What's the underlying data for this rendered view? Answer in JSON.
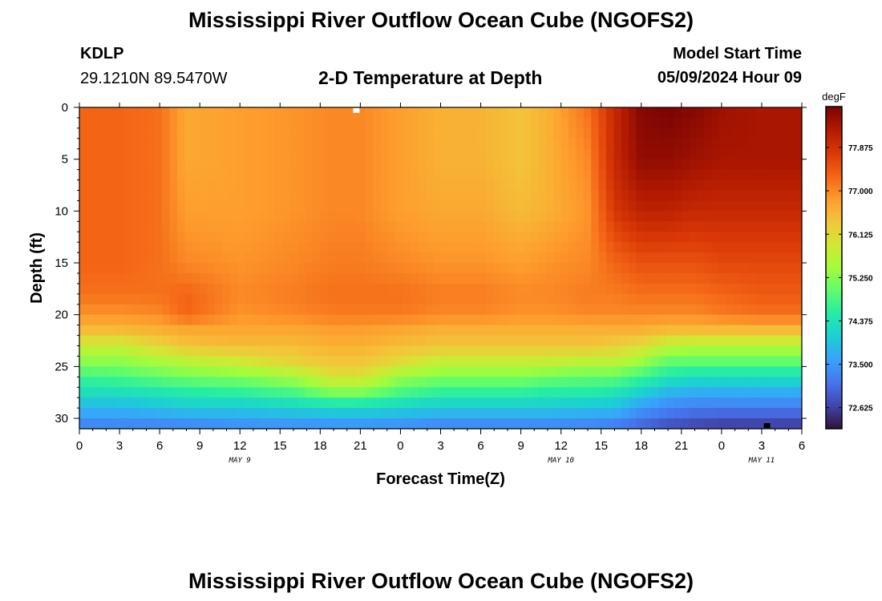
{
  "page": {
    "title": "Mississippi River Outflow Ocean Cube (NGOFS2)",
    "bottom_title": "Mississippi River Outflow Ocean Cube (NGOFS2)",
    "station_id": "KDLP",
    "coordinates": "29.1210N  89.5470W",
    "subtitle": "2-D Temperature at Depth",
    "model_start_label": "Model Start Time",
    "model_start_value": "05/09/2024 Hour 09"
  },
  "chart_data": {
    "type": "heatmap",
    "title": "2-D Temperature at Depth",
    "xlabel": "Forecast Time(Z)",
    "ylabel": "Depth (ft)",
    "x_ticks": [
      "0",
      "3",
      "6",
      "9",
      "12",
      "15",
      "18",
      "21",
      "0",
      "3",
      "6",
      "9",
      "12",
      "15",
      "18",
      "21",
      "0",
      "3",
      "6"
    ],
    "x_date_labels": [
      {
        "label": "MAY 9",
        "at_hour": 12
      },
      {
        "label": "MAY 10",
        "at_hour": 36
      },
      {
        "label": "MAY 11",
        "at_hour": 51
      }
    ],
    "x_range_hours": [
      0,
      54
    ],
    "y_ticks": [
      "0",
      "5",
      "10",
      "15",
      "20",
      "25",
      "30"
    ],
    "y_range_ft": [
      0,
      31
    ],
    "colorbar": {
      "unit": "degF",
      "range": [
        72.2,
        78.7
      ],
      "ticks": [
        "77.875",
        "77.000",
        "76.125",
        "75.250",
        "74.375",
        "73.500",
        "72.625"
      ],
      "colors": [
        "#30123b",
        "#4145ab",
        "#4675ed",
        "#39a2fc",
        "#1bcfd4",
        "#24eca6",
        "#61fc6c",
        "#a4fc3b",
        "#d1e834",
        "#f3c63a",
        "#fe9b2d",
        "#f36315",
        "#d93806",
        "#b11901",
        "#7a0403"
      ]
    },
    "temperature_field": {
      "depths_ft": [
        0,
        5,
        10,
        15,
        18,
        20,
        21.5,
        23,
        24.5,
        26,
        27.5,
        29,
        31
      ],
      "times_hours": [
        0,
        3,
        6,
        8,
        12,
        16,
        19,
        21,
        24,
        27,
        30,
        33,
        35,
        38,
        40,
        42,
        44,
        46,
        48,
        51,
        54
      ],
      "values_degF": [
        [
          77.3,
          77.3,
          77.2,
          76.7,
          76.8,
          76.9,
          77.0,
          77.0,
          76.8,
          76.6,
          76.6,
          76.4,
          76.6,
          77.2,
          78.0,
          78.6,
          78.7,
          78.6,
          78.4,
          78.3,
          78.3
        ],
        [
          77.3,
          77.3,
          77.2,
          76.7,
          76.8,
          76.9,
          77.0,
          77.0,
          76.8,
          76.6,
          76.6,
          76.4,
          76.6,
          77.0,
          78.0,
          78.5,
          78.5,
          78.4,
          78.3,
          78.3,
          78.3
        ],
        [
          77.3,
          77.3,
          77.2,
          76.8,
          76.8,
          76.9,
          77.0,
          77.0,
          76.8,
          76.7,
          76.7,
          76.5,
          76.6,
          76.9,
          77.8,
          78.1,
          78.1,
          78.0,
          78.0,
          78.0,
          78.0
        ],
        [
          77.3,
          77.3,
          77.2,
          77.0,
          76.9,
          77.0,
          77.1,
          77.1,
          77.0,
          76.9,
          76.9,
          76.8,
          76.9,
          77.0,
          77.3,
          77.5,
          77.5,
          77.5,
          77.6,
          77.6,
          77.6
        ],
        [
          77.2,
          77.2,
          77.2,
          77.3,
          77.0,
          77.1,
          77.2,
          77.2,
          77.2,
          77.1,
          77.1,
          77.0,
          77.0,
          77.1,
          77.1,
          77.2,
          77.2,
          77.2,
          77.3,
          77.4,
          77.4
        ],
        [
          76.9,
          76.9,
          77.0,
          77.3,
          76.9,
          77.0,
          77.1,
          77.1,
          77.1,
          77.0,
          77.0,
          76.9,
          76.9,
          77.0,
          77.0,
          77.0,
          77.0,
          77.0,
          77.1,
          77.2,
          77.2
        ],
        [
          76.5,
          76.5,
          76.6,
          76.7,
          76.7,
          76.7,
          76.8,
          76.8,
          76.7,
          76.6,
          76.6,
          76.6,
          76.6,
          76.6,
          76.6,
          76.6,
          76.5,
          76.5,
          76.5,
          76.5,
          76.5
        ],
        [
          75.8,
          75.8,
          76.2,
          76.4,
          76.5,
          76.5,
          76.6,
          76.6,
          76.5,
          76.4,
          76.4,
          76.4,
          76.4,
          76.4,
          76.3,
          76.1,
          75.7,
          75.6,
          75.6,
          75.6,
          75.6
        ],
        [
          75.3,
          75.3,
          75.5,
          75.7,
          75.9,
          76.2,
          76.4,
          76.4,
          76.1,
          75.8,
          75.8,
          75.8,
          75.8,
          75.7,
          75.7,
          75.4,
          75.0,
          75.0,
          75.0,
          75.0,
          75.0
        ],
        [
          74.7,
          74.8,
          75.0,
          75.1,
          75.2,
          75.5,
          76.0,
          76.0,
          75.4,
          75.2,
          75.2,
          75.2,
          75.1,
          75.0,
          75.0,
          74.7,
          74.4,
          74.3,
          74.3,
          74.3,
          74.3
        ],
        [
          74.3,
          74.3,
          74.4,
          74.5,
          74.6,
          74.8,
          75.2,
          75.2,
          74.8,
          74.6,
          74.6,
          74.6,
          74.5,
          74.5,
          74.4,
          74.1,
          73.8,
          73.7,
          73.7,
          73.7,
          73.7
        ],
        [
          73.8,
          73.8,
          73.9,
          74.0,
          74.0,
          74.1,
          74.2,
          74.2,
          74.1,
          74.0,
          74.0,
          74.0,
          74.0,
          73.9,
          73.9,
          73.5,
          73.3,
          73.2,
          73.2,
          73.2,
          73.2
        ],
        [
          73.2,
          73.2,
          73.2,
          73.2,
          73.3,
          73.3,
          73.3,
          73.3,
          73.3,
          73.2,
          73.2,
          73.2,
          73.2,
          73.2,
          73.1,
          72.9,
          72.7,
          72.6,
          72.5,
          72.5,
          72.5
        ]
      ]
    },
    "markers": [
      {
        "color": "#ffffff",
        "hour": 20.7,
        "depth_ft": 0.3
      },
      {
        "color": "#000000",
        "hour": 51.4,
        "depth_ft": 30.7
      }
    ]
  }
}
